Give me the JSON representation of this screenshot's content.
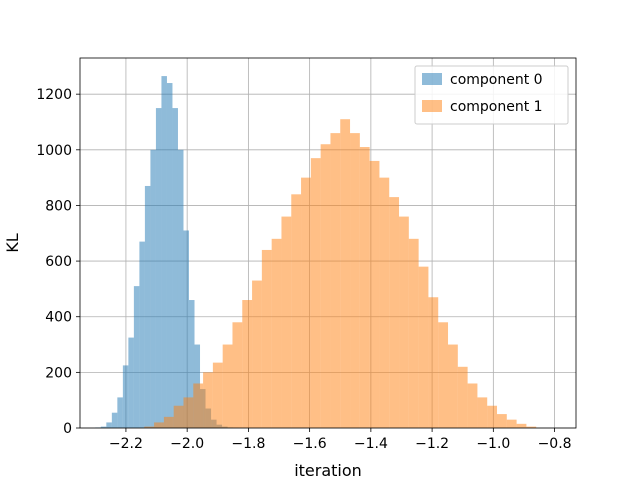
{
  "chart_data": {
    "type": "bar",
    "subtype": "histogram",
    "xlabel": "iteration",
    "ylabel": "KL",
    "xlim": [
      -2.35,
      -0.73
    ],
    "ylim": [
      0,
      1330
    ],
    "xticks": [
      -2.2,
      -2.0,
      -1.8,
      -1.6,
      -1.4,
      -1.2,
      -1.0,
      -0.8
    ],
    "xtick_labels": [
      "−2.2",
      "−2.0",
      "−1.8",
      "−1.6",
      "−1.4",
      "−1.2",
      "−1.0",
      "−0.8"
    ],
    "yticks": [
      0,
      200,
      400,
      600,
      800,
      1000,
      1200
    ],
    "ytick_labels": [
      "0",
      "200",
      "400",
      "600",
      "800",
      "1000",
      "1200"
    ],
    "grid": true,
    "legend_position": "top-right",
    "series": [
      {
        "name": "component 0",
        "color": "#1f77b4",
        "opacity": 0.5,
        "bin_edges": [
          -2.3,
          -2.282,
          -2.264,
          -2.246,
          -2.228,
          -2.21,
          -2.192,
          -2.174,
          -2.156,
          -2.138,
          -2.12,
          -2.102,
          -2.084,
          -2.066,
          -2.048,
          -2.03,
          -2.012,
          -1.994,
          -1.976,
          -1.958,
          -1.94,
          -1.922,
          -1.904,
          -1.886,
          -1.868,
          -1.85,
          -1.832
        ],
        "counts": [
          2,
          5,
          20,
          55,
          110,
          225,
          325,
          510,
          670,
          870,
          1000,
          1150,
          1265,
          1240,
          1150,
          1000,
          710,
          460,
          300,
          140,
          70,
          30,
          12,
          5,
          2,
          1
        ]
      },
      {
        "name": "component 1",
        "color": "#ff7f0e",
        "opacity": 0.5,
        "bin_edges": [
          -2.14,
          -2.108,
          -2.076,
          -2.044,
          -2.012,
          -1.98,
          -1.948,
          -1.916,
          -1.884,
          -1.852,
          -1.82,
          -1.788,
          -1.756,
          -1.724,
          -1.692,
          -1.66,
          -1.628,
          -1.596,
          -1.564,
          -1.532,
          -1.5,
          -1.468,
          -1.436,
          -1.404,
          -1.372,
          -1.34,
          -1.308,
          -1.276,
          -1.244,
          -1.212,
          -1.18,
          -1.148,
          -1.116,
          -1.084,
          -1.052,
          -1.02,
          -0.988,
          -0.956,
          -0.924,
          -0.892,
          -0.86
        ],
        "counts": [
          5,
          20,
          40,
          80,
          110,
          160,
          200,
          235,
          300,
          380,
          460,
          530,
          640,
          680,
          760,
          840,
          900,
          970,
          1020,
          1060,
          1110,
          1060,
          1010,
          960,
          900,
          830,
          760,
          680,
          580,
          470,
          380,
          300,
          220,
          160,
          110,
          80,
          50,
          30,
          15,
          5
        ]
      }
    ]
  }
}
